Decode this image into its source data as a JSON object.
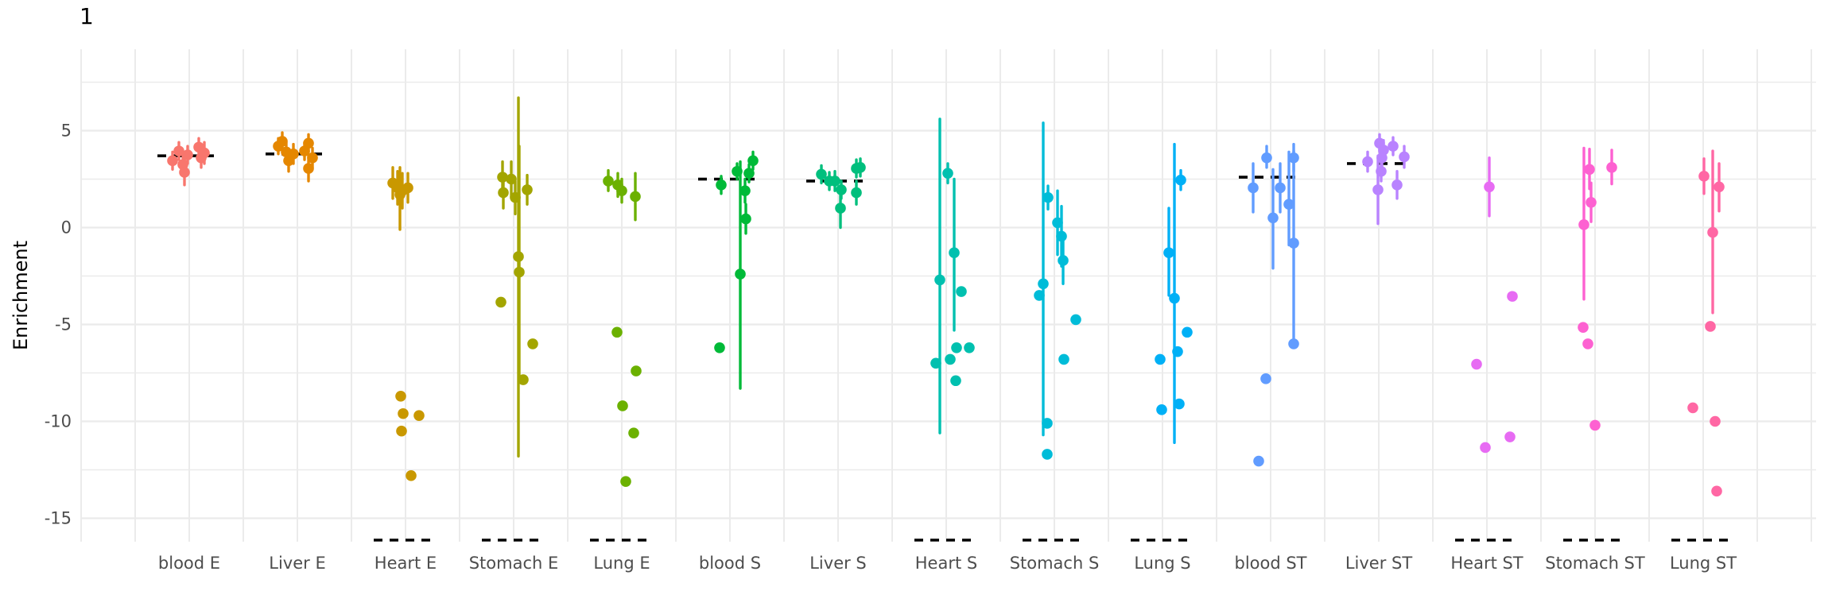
{
  "chart_data": {
    "type": "scatter",
    "subtype": "jittered pointrange with group mean dashes (ggplot style)",
    "title": "1",
    "ylabel": "Enrichment",
    "xlabel": "",
    "y_ticks": [
      5,
      0,
      -5,
      -10,
      -15
    ],
    "y_minor_gridlines": [
      7.5,
      2.5,
      -2.5,
      -7.5,
      -12.5
    ],
    "ylim": [
      -16.2,
      9.2
    ],
    "grid_on": true,
    "legend": "none",
    "style": {
      "grid_color": "#EBEBEB",
      "tick_label_color": "#4D4D4D",
      "mean_line_color": "#000000",
      "background": "#FFFFFF"
    },
    "categories": [
      "blood E",
      "Liver E",
      "Heart E",
      "Stomach E",
      "Lung E",
      "blood S",
      "Liver S",
      "Heart S",
      "Stomach S",
      "Lung S",
      "blood ST",
      "Liver ST",
      "Heart ST",
      "Stomach ST",
      "Lung ST"
    ],
    "note_points_format": "points: [dx_px_jitter, y_value, errbar_low, errbar_high] — null error bounds mean no visible error bar; mean=null means group mean dash is clipped at panel bottom",
    "groups": [
      {
        "label": "blood E",
        "color": "#F8766D",
        "mean": 3.7,
        "points": [
          [
            -21,
            3.45,
            3.0,
            3.9
          ],
          [
            -13,
            3.95,
            3.5,
            4.4
          ],
          [
            -8,
            3.25,
            2.8,
            3.7
          ],
          [
            -6,
            2.85,
            2.2,
            3.5
          ],
          [
            -2,
            3.75,
            3.3,
            4.2
          ],
          [
            12,
            4.15,
            3.7,
            4.6
          ],
          [
            15,
            3.6,
            3.1,
            4.1
          ],
          [
            19,
            3.85,
            3.3,
            4.4
          ]
        ]
      },
      {
        "label": "Liver E",
        "color": "#E58700",
        "mean": 3.8,
        "points": [
          [
            -24,
            4.2,
            3.8,
            4.6
          ],
          [
            -19,
            4.45,
            4.0,
            4.9
          ],
          [
            -14,
            3.9,
            3.4,
            4.4
          ],
          [
            -11,
            3.45,
            2.9,
            4.0
          ],
          [
            -5,
            3.8,
            3.3,
            4.3
          ],
          [
            9,
            3.95,
            3.5,
            4.4
          ],
          [
            14,
            4.35,
            3.9,
            4.8
          ],
          [
            14,
            3.05,
            2.4,
            3.7
          ],
          [
            19,
            3.6,
            3.1,
            4.1
          ]
        ]
      },
      {
        "label": "Heart E",
        "color": "#C99800",
        "mean": null,
        "points": [
          [
            -16,
            2.3,
            1.5,
            3.1
          ],
          [
            -10,
            2.05,
            1.2,
            2.9
          ],
          [
            -7,
            1.7,
            -0.1,
            3.1
          ],
          [
            -4,
            1.9,
            1.0,
            2.8
          ],
          [
            3,
            2.05,
            1.3,
            2.8
          ],
          [
            -6,
            -8.7,
            null,
            null
          ],
          [
            -3,
            -9.6,
            null,
            null
          ],
          [
            17,
            -9.7,
            null,
            null
          ],
          [
            -5,
            -10.5,
            null,
            null
          ],
          [
            7,
            -12.8,
            null,
            null
          ]
        ]
      },
      {
        "label": "Stomach E",
        "color": "#A3A500",
        "mean": null,
        "points": [
          [
            -14,
            2.6,
            1.8,
            3.4
          ],
          [
            -3,
            2.5,
            1.6,
            3.4
          ],
          [
            -13,
            1.8,
            1.0,
            2.6
          ],
          [
            2,
            1.55,
            0.7,
            2.4
          ],
          [
            17,
            1.95,
            1.2,
            2.7
          ],
          [
            6,
            -1.5,
            -11.8,
            6.7
          ],
          [
            7,
            -2.3,
            -8.0,
            4.2
          ],
          [
            -16,
            -3.85,
            null,
            null
          ],
          [
            24,
            -6.0,
            null,
            null
          ],
          [
            12,
            -7.85,
            null,
            null
          ]
        ]
      },
      {
        "label": "Lung E",
        "color": "#6BB100",
        "mean": null,
        "points": [
          [
            -17,
            2.4,
            1.9,
            2.95
          ],
          [
            -5,
            2.2,
            1.6,
            2.8
          ],
          [
            0,
            1.9,
            1.3,
            2.5
          ],
          [
            17,
            1.6,
            0.4,
            2.8
          ],
          [
            -6,
            -5.4,
            null,
            null
          ],
          [
            18,
            -7.4,
            null,
            null
          ],
          [
            1,
            -9.2,
            null,
            null
          ],
          [
            15,
            -10.6,
            null,
            null
          ],
          [
            5,
            -13.1,
            null,
            null
          ]
        ]
      },
      {
        "label": "blood S",
        "color": "#00BA38",
        "mean": 2.5,
        "points": [
          [
            -11,
            2.2,
            1.75,
            2.65
          ],
          [
            9,
            2.9,
            2.5,
            3.3
          ],
          [
            29,
            3.45,
            3.0,
            3.9
          ],
          [
            24,
            2.8,
            2.35,
            3.25
          ],
          [
            19,
            1.9,
            1.3,
            2.5
          ],
          [
            20,
            0.45,
            -0.3,
            1.2
          ],
          [
            13,
            -2.4,
            -8.3,
            3.4
          ],
          [
            -13,
            -6.2,
            null,
            null
          ]
        ]
      },
      {
        "label": "Liver S",
        "color": "#00BF7D",
        "mean": 2.4,
        "points": [
          [
            -21,
            2.75,
            2.3,
            3.2
          ],
          [
            -11,
            2.4,
            1.95,
            2.85
          ],
          [
            -4,
            2.4,
            1.9,
            2.9
          ],
          [
            4,
            1.95,
            1.5,
            2.4
          ],
          [
            3,
            1.0,
            0.0,
            2.0
          ],
          [
            23,
            3.05,
            2.6,
            3.5
          ],
          [
            28,
            3.1,
            2.65,
            3.55
          ],
          [
            23,
            1.8,
            1.2,
            2.4
          ]
        ]
      },
      {
        "label": "Heart S",
        "color": "#00C0AF",
        "mean": null,
        "points": [
          [
            2,
            2.8,
            2.3,
            3.3
          ],
          [
            10,
            -1.3,
            -5.3,
            2.5
          ],
          [
            -8,
            -2.7,
            -10.6,
            5.6
          ],
          [
            19,
            -3.3,
            null,
            null
          ],
          [
            13,
            -6.2,
            null,
            null
          ],
          [
            29,
            -6.2,
            null,
            null
          ],
          [
            5,
            -6.8,
            null,
            null
          ],
          [
            -13,
            -7.0,
            null,
            null
          ],
          [
            12,
            -7.9,
            null,
            null
          ]
        ]
      },
      {
        "label": "Stomach S",
        "color": "#00BCD8",
        "mean": null,
        "points": [
          [
            -8,
            1.55,
            0.95,
            2.15
          ],
          [
            -14,
            -2.9,
            -10.7,
            5.4
          ],
          [
            4,
            0.25,
            -1.4,
            1.9
          ],
          [
            9,
            -0.45,
            -2.0,
            1.1
          ],
          [
            11,
            -1.7,
            -2.9,
            -0.5
          ],
          [
            -19,
            -3.5,
            null,
            null
          ],
          [
            27,
            -4.75,
            null,
            null
          ],
          [
            12,
            -6.8,
            null,
            null
          ],
          [
            -9,
            -10.1,
            null,
            null
          ],
          [
            -9,
            -11.7,
            null,
            null
          ]
        ]
      },
      {
        "label": "Lung S",
        "color": "#00B0F6",
        "mean": null,
        "points": [
          [
            23,
            2.45,
            1.95,
            2.95
          ],
          [
            8,
            -1.3,
            -3.5,
            1.0
          ],
          [
            15,
            -3.65,
            -11.1,
            4.3
          ],
          [
            31,
            -5.4,
            null,
            null
          ],
          [
            19,
            -6.4,
            null,
            null
          ],
          [
            -3,
            -6.8,
            null,
            null
          ],
          [
            21,
            -9.1,
            null,
            null
          ],
          [
            -1,
            -9.4,
            null,
            null
          ]
        ]
      },
      {
        "label": "blood ST",
        "color": "#619CFF",
        "mean": 2.6,
        "points": [
          [
            -5,
            3.6,
            3.1,
            4.2
          ],
          [
            -22,
            2.05,
            0.8,
            3.3
          ],
          [
            12,
            2.05,
            0.8,
            3.3
          ],
          [
            3,
            0.5,
            -2.1,
            3.0
          ],
          [
            23,
            1.2,
            -0.9,
            3.9
          ],
          [
            29,
            3.6,
            2.9,
            4.3
          ],
          [
            29,
            -0.8,
            -5.9,
            3.95
          ],
          [
            29,
            -6.0,
            null,
            null
          ],
          [
            -6,
            -7.8,
            null,
            null
          ],
          [
            -15,
            -12.05,
            null,
            null
          ]
        ]
      },
      {
        "label": "Liver ST",
        "color": "#B983FF",
        "mean": 3.3,
        "points": [
          [
            -14,
            3.4,
            2.9,
            3.9
          ],
          [
            1,
            4.35,
            3.9,
            4.8
          ],
          [
            6,
            4.0,
            3.5,
            4.5
          ],
          [
            4,
            3.6,
            3.1,
            4.1
          ],
          [
            3,
            2.9,
            2.4,
            3.4
          ],
          [
            18,
            4.2,
            3.75,
            4.65
          ],
          [
            23,
            2.2,
            1.5,
            2.9
          ],
          [
            32,
            3.65,
            3.1,
            4.2
          ],
          [
            -1,
            1.95,
            0.2,
            3.7
          ]
        ]
      },
      {
        "label": "Heart ST",
        "color": "#E76BF3",
        "mean": null,
        "points": [
          [
            3,
            2.1,
            0.6,
            3.6
          ],
          [
            32,
            -3.55,
            null,
            null
          ],
          [
            -13,
            -7.05,
            null,
            null
          ],
          [
            29,
            -10.8,
            null,
            null
          ],
          [
            -2,
            -11.35,
            null,
            null
          ]
        ]
      },
      {
        "label": "Stomach ST",
        "color": "#FD61D1",
        "mean": null,
        "points": [
          [
            -7,
            3.0,
            2.0,
            4.05
          ],
          [
            21,
            3.1,
            2.25,
            4.0
          ],
          [
            -5,
            1.3,
            0.3,
            2.3
          ],
          [
            -14,
            0.15,
            -3.7,
            4.1
          ],
          [
            -15,
            -5.15,
            null,
            null
          ],
          [
            -9,
            -6.0,
            null,
            null
          ],
          [
            0,
            -10.2,
            null,
            null
          ]
        ]
      },
      {
        "label": "Lung ST",
        "color": "#FF67A4",
        "mean": null,
        "points": [
          [
            1,
            2.65,
            1.75,
            3.55
          ],
          [
            20,
            2.1,
            0.85,
            3.3
          ],
          [
            12,
            -0.25,
            -4.4,
            3.95
          ],
          [
            9,
            -5.1,
            null,
            null
          ],
          [
            -13,
            -9.3,
            null,
            null
          ],
          [
            15,
            -10.0,
            null,
            null
          ],
          [
            17,
            -13.6,
            null,
            null
          ]
        ]
      }
    ]
  }
}
